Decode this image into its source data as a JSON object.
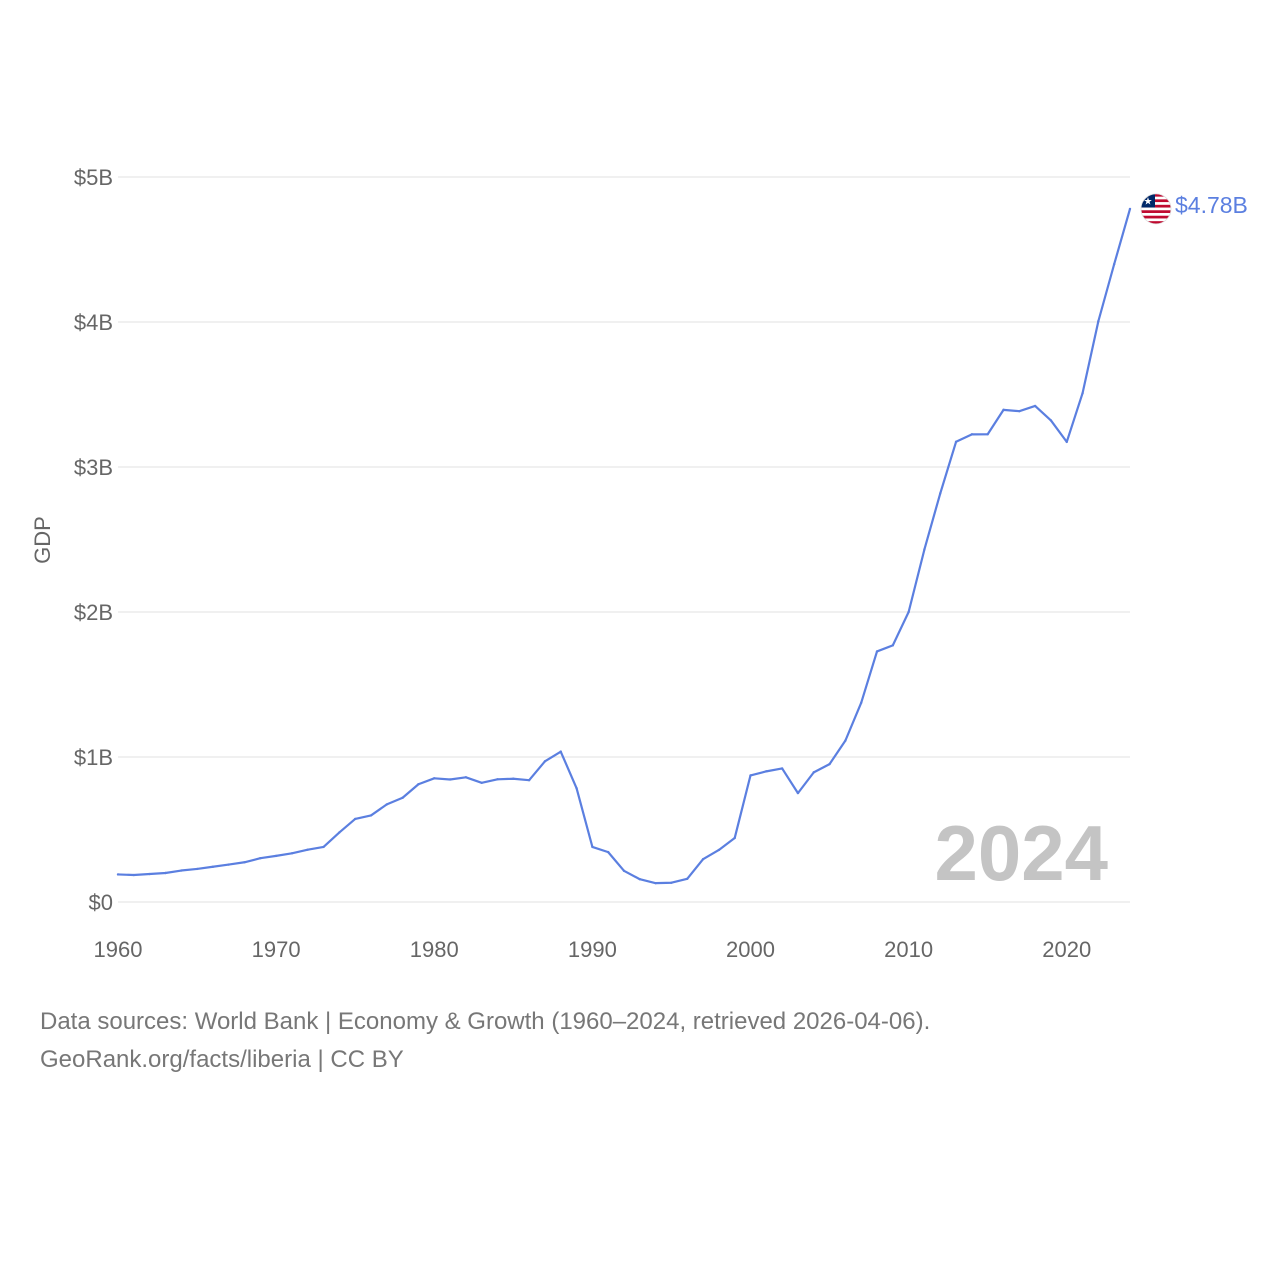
{
  "colors": {
    "line": "#5b7fe0",
    "grid": "#e6e6e6",
    "text": "#666666",
    "watermark": "#c4c4c4"
  },
  "chart_data": {
    "type": "line",
    "ylabel": "GDP",
    "xlabel": "",
    "xlim": [
      1960,
      2024
    ],
    "ylim": [
      0,
      5000000000
    ],
    "x_ticks": [
      1960,
      1970,
      1980,
      1990,
      2000,
      2010,
      2020
    ],
    "x_tick_labels": [
      "1960",
      "1970",
      "1980",
      "1990",
      "2000",
      "2010",
      "2020"
    ],
    "y_ticks": [
      0,
      1000000000,
      2000000000,
      3000000000,
      4000000000,
      5000000000
    ],
    "y_tick_labels": [
      "$0",
      "$1B",
      "$2B",
      "$3B",
      "$4B",
      "$5B"
    ],
    "grid": true,
    "year_watermark": "2024",
    "end_label": "$4.78B",
    "end_marker_icon": "liberia-flag-icon",
    "series": [
      {
        "name": "Liberia GDP",
        "x": [
          1960,
          1961,
          1962,
          1963,
          1964,
          1965,
          1966,
          1967,
          1968,
          1969,
          1970,
          1971,
          1972,
          1973,
          1974,
          1975,
          1976,
          1977,
          1978,
          1979,
          1980,
          1981,
          1982,
          1983,
          1984,
          1985,
          1986,
          1987,
          1988,
          1989,
          1990,
          1991,
          1992,
          1993,
          1994,
          1995,
          1996,
          1997,
          1998,
          1999,
          2000,
          2001,
          2002,
          2003,
          2004,
          2005,
          2006,
          2007,
          2008,
          2009,
          2010,
          2011,
          2012,
          2013,
          2014,
          2015,
          2016,
          2017,
          2018,
          2019,
          2020,
          2021,
          2022,
          2023,
          2024
        ],
        "values": [
          190000000,
          186000000,
          193000000,
          200000000,
          217000000,
          228000000,
          243000000,
          258000000,
          274000000,
          302000000,
          318000000,
          336000000,
          361000000,
          380000000,
          480000000,
          573000000,
          597000000,
          673000000,
          719000000,
          812000000,
          853000000,
          845000000,
          860000000,
          822000000,
          846000000,
          850000000,
          840000000,
          970000000,
          1037000000,
          785000000,
          380000000,
          344000000,
          215000000,
          157000000,
          130000000,
          133000000,
          160000000,
          295000000,
          359000000,
          441000000,
          873000000,
          901000000,
          921000000,
          751000000,
          894000000,
          951000000,
          1113000000,
          1374000000,
          1728000000,
          1770000000,
          2000000000,
          2432000000,
          2818000000,
          3174000000,
          3225000000,
          3226000000,
          3394000000,
          3385000000,
          3421000000,
          3321000000,
          3173000000,
          3509000000,
          4006000000,
          4399000000,
          4780000000
        ]
      }
    ]
  },
  "footer": {
    "sources_line": "Data sources: World Bank | Economy & Growth (1960–2024, retrieved 2026-04-06).",
    "credit_line": "GeoRank.org/facts/liberia | CC BY"
  }
}
